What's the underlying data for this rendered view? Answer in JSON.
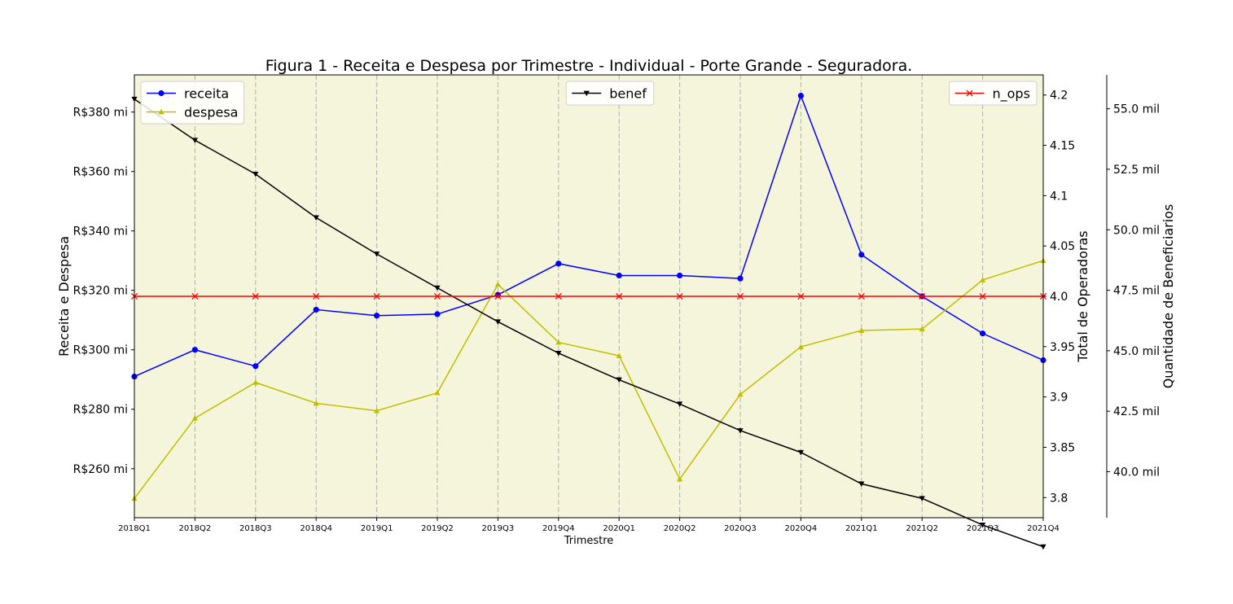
{
  "chart_data": {
    "type": "line",
    "title": "Figura 1 - Receita e Despesa por Trimestre - Individual - Porte Grande - Seguradora.",
    "xlabel": "Trimestre",
    "categories": [
      "2018Q1",
      "2018Q2",
      "2018Q3",
      "2018Q4",
      "2019Q1",
      "2019Q2",
      "2019Q3",
      "2019Q4",
      "2020Q1",
      "2020Q2",
      "2020Q3",
      "2020Q4",
      "2021Q1",
      "2021Q2",
      "2021Q3",
      "2021Q4"
    ],
    "axes": {
      "left": {
        "label": "Receita e Despesa",
        "ylim": [
          243.5,
          392.5
        ],
        "ticks": [
          260,
          280,
          300,
          320,
          340,
          360,
          380
        ],
        "tick_labels": [
          "R$260 mi",
          "R$280 mi",
          "R$300 mi",
          "R$320 mi",
          "R$340 mi",
          "R$360 mi",
          "R$380 mi"
        ]
      },
      "right1": {
        "label": "Total de Operadoras",
        "ylim": [
          3.78,
          4.22
        ],
        "ticks": [
          3.8,
          3.85,
          3.9,
          3.95,
          4.0,
          4.05,
          4.1,
          4.15,
          4.2
        ],
        "tick_labels": [
          "3.8",
          "3.85",
          "3.9",
          "3.95",
          "4.0",
          "4.05",
          "4.1",
          "4.15",
          "4.2"
        ]
      },
      "right2": {
        "label": "Quantidade de Beneficiarios",
        "ylim": [
          38.1,
          56.4
        ],
        "ticks": [
          40.0,
          42.5,
          45.0,
          47.5,
          50.0,
          52.5,
          55.0
        ],
        "tick_labels": [
          "40.0 mil",
          "42.5 mil",
          "45.0 mil",
          "47.5 mil",
          "50.0 mil",
          "52.5 mil",
          "55.0 mil"
        ]
      }
    },
    "series": [
      {
        "name": "receita",
        "axis": "left",
        "color": "#0000ff",
        "marker": "circle",
        "values": [
          291,
          300,
          294.5,
          313.5,
          311.5,
          312,
          318.5,
          329,
          325,
          325,
          324,
          385.5,
          332,
          318,
          305.5,
          296.5
        ]
      },
      {
        "name": "despesa",
        "axis": "left",
        "color": "#bfbf00",
        "marker": "triangle-up",
        "values": [
          250,
          277,
          289,
          282,
          279.5,
          285.5,
          322,
          302.5,
          298,
          256.5,
          285,
          301,
          306.5,
          307,
          323.5,
          330
        ]
      },
      {
        "name": "benef",
        "axis": "right2",
        "color": "#000000",
        "marker": "triangle-down",
        "values": [
          55.4,
          53.7,
          52.3,
          50.5,
          49.0,
          47.6,
          46.2,
          44.9,
          43.8,
          42.8,
          41.7,
          40.8,
          39.5,
          38.9,
          37.8,
          36.9
        ]
      },
      {
        "name": "n_ops",
        "axis": "right1",
        "color": "#ff0000",
        "marker": "x",
        "values": [
          4.0,
          4.0,
          4.0,
          4.0,
          4.0,
          4.0,
          4.0,
          4.0,
          4.0,
          4.0,
          4.0,
          4.0,
          4.0,
          4.0,
          4.0,
          4.0
        ]
      }
    ],
    "legends": [
      {
        "placement": "upper-left",
        "series": [
          "receita",
          "despesa"
        ]
      },
      {
        "placement": "upper-center",
        "series": [
          "benef"
        ]
      },
      {
        "placement": "upper-right",
        "series": [
          "n_ops"
        ]
      }
    ],
    "grid": "vertical-dashed",
    "background": "#f5f5dc"
  }
}
